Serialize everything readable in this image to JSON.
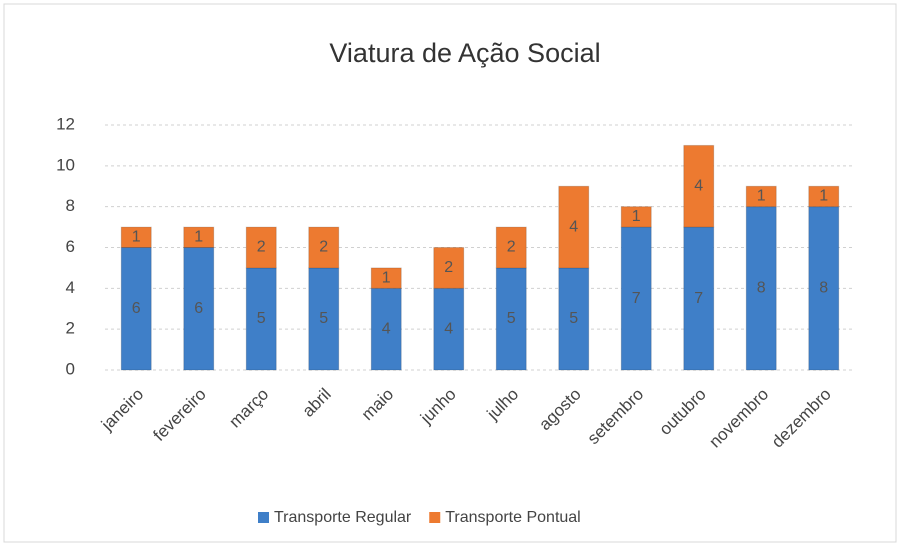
{
  "chart_data": {
    "type": "stacked_bar",
    "title": "Viatura de Ação Social",
    "categories": [
      "janeiro",
      "fevereiro",
      "março",
      "abril",
      "maio",
      "junho",
      "julho",
      "agosto",
      "setembro",
      "outubro",
      "novembro",
      "dezembro"
    ],
    "series": [
      {
        "name": "Transporte Regular",
        "color": "#3f7fc8",
        "values": [
          6,
          6,
          5,
          5,
          4,
          4,
          5,
          5,
          7,
          7,
          8,
          8
        ]
      },
      {
        "name": "Transporte Pontual",
        "color": "#ed7a30",
        "values": [
          1,
          1,
          2,
          2,
          1,
          2,
          2,
          4,
          1,
          4,
          1,
          1
        ]
      }
    ],
    "ylim": [
      0,
      12
    ],
    "yticks": [
      0,
      2,
      4,
      6,
      8,
      10,
      12
    ],
    "grid": true,
    "legend": "bottom"
  }
}
